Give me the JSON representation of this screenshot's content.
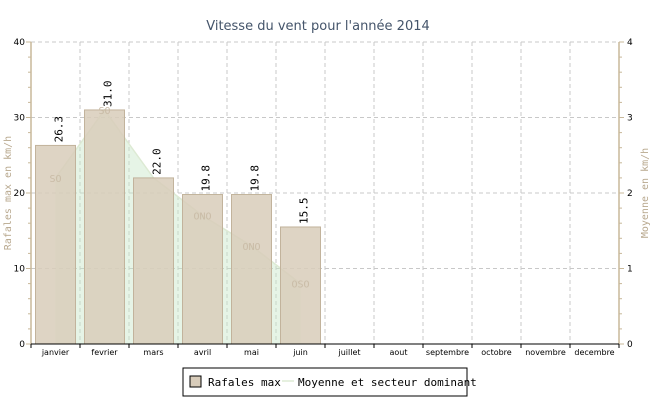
{
  "chart_data": {
    "type": "bar",
    "title": "Vitesse du vent pour l'année 2014",
    "categories": [
      "janvier",
      "fevrier",
      "mars",
      "avril",
      "mai",
      "juin",
      "juillet",
      "aout",
      "septembre",
      "octobre",
      "novembre",
      "decembre"
    ],
    "series": [
      {
        "name": "Rafales max",
        "type": "bar",
        "axis": "left",
        "values": [
          26.3,
          31.0,
          22.0,
          19.8,
          19.8,
          15.5,
          null,
          null,
          null,
          null,
          null,
          null
        ],
        "labels": [
          "26.3",
          "31.0",
          "22.0",
          "19.8",
          "19.8",
          "15.5"
        ]
      },
      {
        "name": "Moyenne et secteur dominant",
        "type": "area",
        "axis": "right",
        "values": [
          2.2,
          3.1,
          2.2,
          1.7,
          1.3,
          0.8,
          null,
          null,
          null,
          null,
          null,
          null
        ],
        "sectors": [
          "SO",
          "SO",
          "",
          "ONO",
          "ONO",
          "OSO",
          "",
          "",
          "",
          "",
          "",
          ""
        ]
      }
    ],
    "yleft": {
      "label": "Rafales max en km/h",
      "min": 0,
      "max": 40,
      "ticks": [
        0,
        10,
        20,
        30,
        40
      ]
    },
    "yright": {
      "label": "Moyenne en km/h",
      "min": 0,
      "max": 4,
      "ticks": [
        0,
        1,
        2,
        3,
        4
      ]
    },
    "grid": true,
    "legend_position": "bottom",
    "colors": {
      "bar_fill": "#d8ccba",
      "bar_stroke": "#c2b39c",
      "area_fill": "#c8e6c8",
      "area_stroke": "#ddead4",
      "grid": "#c8c8c8",
      "axis": "#c8b89a"
    }
  }
}
